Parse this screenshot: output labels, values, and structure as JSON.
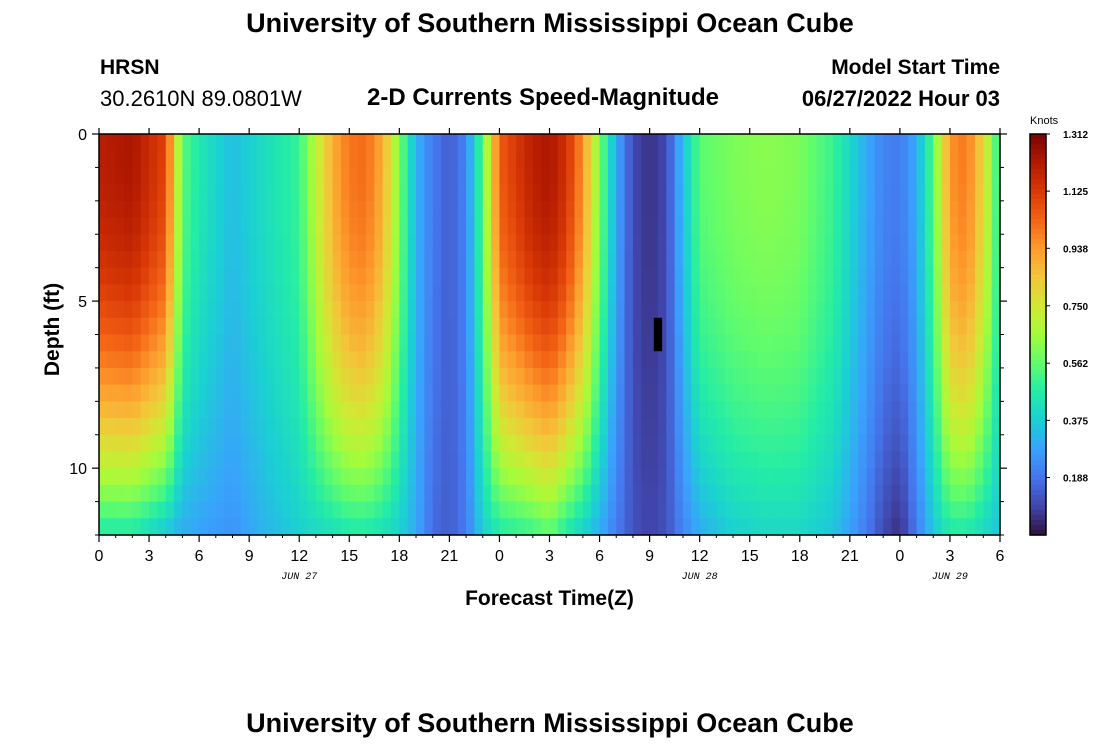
{
  "header": {
    "title": "University of Southern Mississippi Ocean Cube",
    "station": "HRSN",
    "coordinates": "30.2610N  89.0801W",
    "subtitle": "2-D Currents Speed-Magnitude",
    "model_start_label": "Model Start Time",
    "model_start_value": "06/27/2022 Hour 03"
  },
  "footer": {
    "title": "University of Southern Mississippi Ocean Cube"
  },
  "chart_data": {
    "type": "heatmap",
    "title": "2-D Currents Speed-Magnitude",
    "xlabel": "Forecast Time(Z)",
    "ylabel": "Depth (ft)",
    "x_hours": [
      0,
      54
    ],
    "xlim": [
      0,
      54
    ],
    "x_tick_hours": [
      0,
      3,
      6,
      9,
      12,
      15,
      18,
      21,
      24,
      27,
      30,
      33,
      36,
      39,
      42,
      45,
      48,
      51,
      54
    ],
    "x_tick_labels": [
      "0",
      "3",
      "6",
      "9",
      "12",
      "15",
      "18",
      "21",
      "0",
      "3",
      "6",
      "9",
      "12",
      "15",
      "18",
      "21",
      "0",
      "3",
      "6"
    ],
    "date_labels": [
      {
        "text": "JUN 27",
        "hour": 12
      },
      {
        "text": "JUN 28",
        "hour": 36
      },
      {
        "text": "JUN 29",
        "hour": 51
      }
    ],
    "ylim": [
      0,
      12
    ],
    "y_tick_values": [
      0,
      5,
      10
    ],
    "y_tick_labels": [
      "0",
      "5",
      "10"
    ],
    "colorbar": {
      "label": "Knots",
      "min": 0.0,
      "max": 1.312,
      "tick_values": [
        1.312,
        1.125,
        0.938,
        0.75,
        0.562,
        0.375,
        0.188
      ],
      "tick_labels": [
        "1.312",
        "1.125",
        "0.938",
        "0.750",
        "0.562",
        "0.375",
        "0.188"
      ],
      "colors": [
        "#30123b",
        "#4145ab",
        "#4675ed",
        "#39a2fc",
        "#1bcfd4",
        "#24eca6",
        "#61fc6c",
        "#a4fc3b",
        "#d1e834",
        "#f3c63a",
        "#fe9b2d",
        "#f36315",
        "#d93806",
        "#b11901",
        "#7a0402"
      ]
    },
    "speed_profile_knots": {
      "hours": [
        0,
        2,
        4,
        5,
        6,
        8,
        10,
        12,
        14,
        15,
        16,
        17,
        18,
        19,
        20,
        21,
        22,
        23,
        24,
        26,
        27,
        28,
        29,
        30,
        31,
        32,
        33,
        34,
        35,
        36,
        38,
        40,
        42,
        44,
        46,
        47,
        48,
        49,
        50,
        51,
        52,
        53,
        54
      ],
      "surface": [
        1.2,
        1.23,
        1.1,
        0.55,
        0.45,
        0.34,
        0.42,
        0.5,
        0.9,
        1.0,
        1.02,
        0.9,
        0.6,
        0.32,
        0.2,
        0.14,
        0.22,
        0.55,
        1.05,
        1.2,
        1.23,
        1.15,
        0.95,
        0.6,
        0.3,
        0.1,
        0.06,
        0.1,
        0.35,
        0.55,
        0.6,
        0.62,
        0.6,
        0.5,
        0.3,
        0.22,
        0.2,
        0.3,
        0.55,
        0.95,
        1.0,
        0.8,
        0.45
      ],
      "bottom": [
        0.45,
        0.45,
        0.35,
        0.3,
        0.28,
        0.25,
        0.32,
        0.38,
        0.42,
        0.45,
        0.45,
        0.42,
        0.38,
        0.3,
        0.17,
        0.14,
        0.2,
        0.38,
        0.45,
        0.5,
        0.55,
        0.45,
        0.38,
        0.3,
        0.2,
        0.12,
        0.09,
        0.12,
        0.22,
        0.3,
        0.38,
        0.4,
        0.4,
        0.35,
        0.2,
        0.1,
        0.05,
        0.2,
        0.36,
        0.45,
        0.45,
        0.4,
        0.35
      ]
    }
  }
}
